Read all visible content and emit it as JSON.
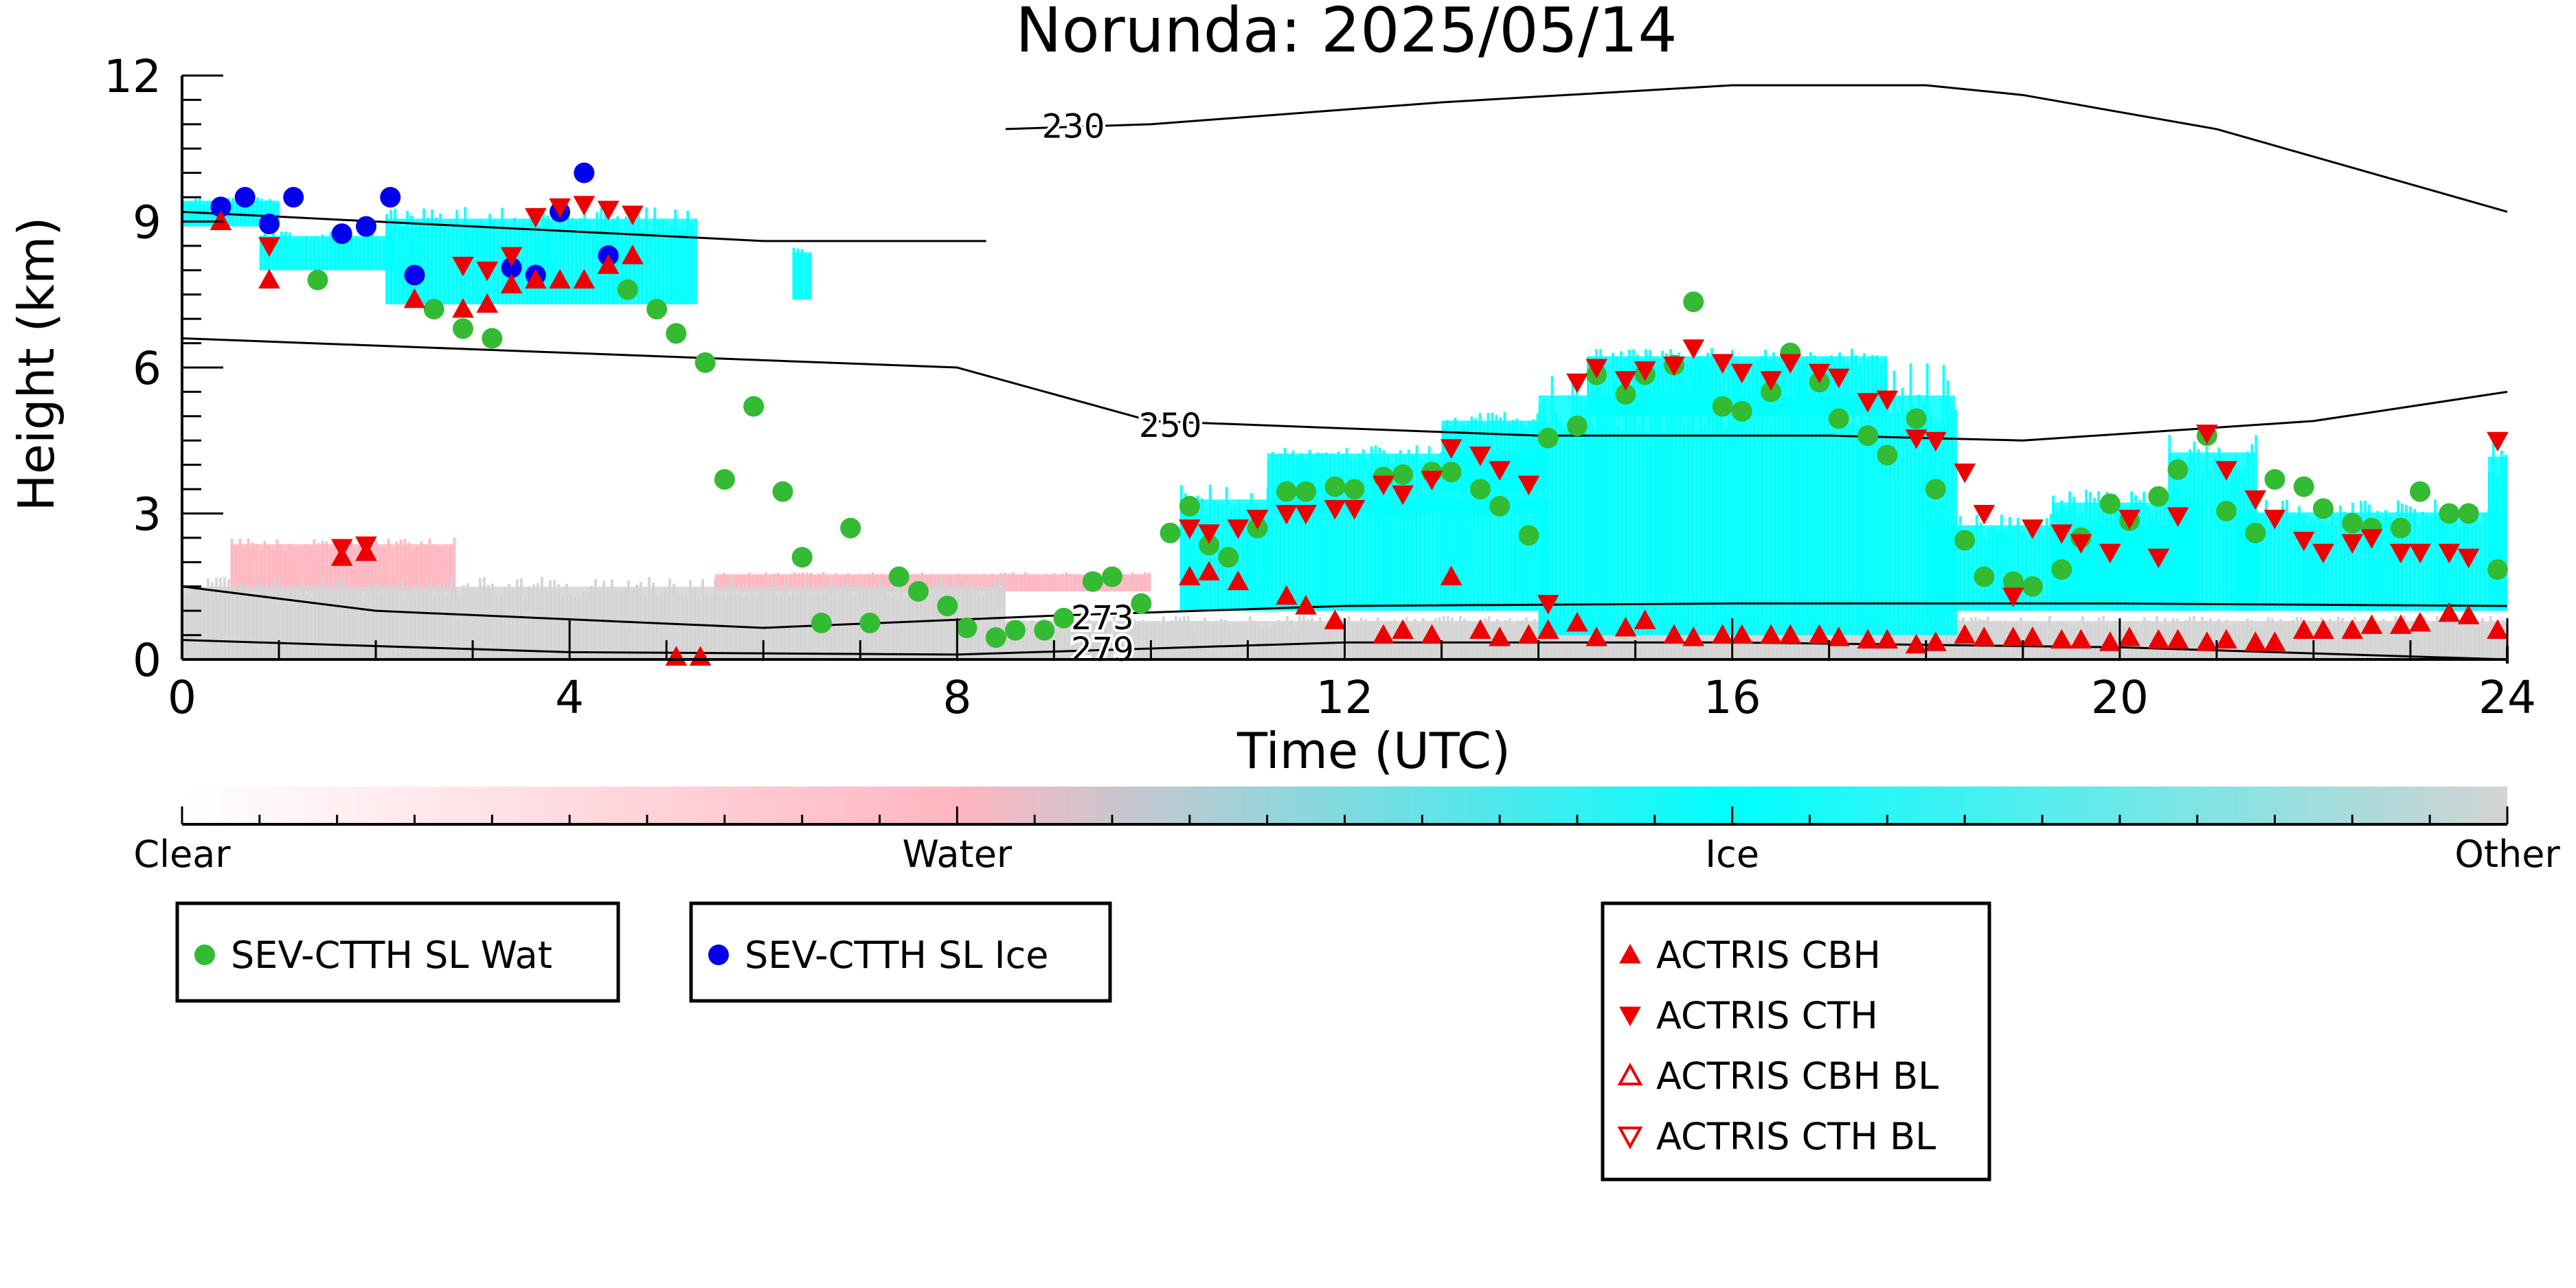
{
  "chart_data": {
    "type": "scatter",
    "title": "Norunda: 2025/05/14",
    "xlabel": "Time (UTC)",
    "ylabel": "Height (km)",
    "xlim": [
      0,
      24
    ],
    "ylim": [
      0,
      12
    ],
    "xticks": [
      0,
      4,
      8,
      12,
      16,
      20,
      24
    ],
    "yticks": [
      0,
      3,
      6,
      9,
      12
    ],
    "colorbar": {
      "labels": [
        "Clear",
        "Water",
        "Ice",
        "Other"
      ],
      "colors": [
        "#ffffff",
        "#ffb6c1",
        "#00ffff",
        "#d3d3d3"
      ]
    },
    "contours": [
      {
        "label": "230",
        "points": [
          [
            8.5,
            10.9
          ],
          [
            10,
            11
          ],
          [
            13,
            11.45
          ],
          [
            16,
            11.8
          ],
          [
            18,
            11.8
          ],
          [
            19,
            11.6
          ],
          [
            21,
            10.9
          ],
          [
            24,
            9.2
          ]
        ]
      },
      {
        "label": "250",
        "points": [
          [
            0,
            6.6
          ],
          [
            4,
            6.3
          ],
          [
            8,
            6
          ],
          [
            10,
            4.9
          ],
          [
            14,
            4.6
          ],
          [
            17,
            4.6
          ],
          [
            19,
            4.5
          ],
          [
            22,
            4.9
          ],
          [
            24,
            5.5
          ]
        ]
      },
      {
        "label": "273",
        "points": [
          [
            0,
            1.5
          ],
          [
            2,
            1
          ],
          [
            6,
            0.65
          ],
          [
            9,
            0.9
          ],
          [
            12,
            1.1
          ],
          [
            16,
            1.15
          ],
          [
            20,
            1.15
          ],
          [
            24,
            1.1
          ]
        ]
      },
      {
        "label": "279",
        "points": [
          [
            0,
            0.4
          ],
          [
            4,
            0.15
          ],
          [
            8,
            0.1
          ],
          [
            12,
            0.35
          ],
          [
            16,
            0.35
          ],
          [
            20,
            0.25
          ],
          [
            24,
            0
          ]
        ]
      },
      {
        "label": "",
        "points": [
          [
            0,
            9.2
          ],
          [
            3,
            8.9
          ],
          [
            6,
            8.6
          ],
          [
            8.3,
            8.6
          ]
        ]
      }
    ],
    "series": [
      {
        "name": "SEV-CTTH SL Wat",
        "marker": "circle",
        "color": "#33bb33",
        "x": [
          1.4,
          2.6,
          2.9,
          3.2,
          4.6,
          4.9,
          5.1,
          5.4,
          5.6,
          5.9,
          6.2,
          6.4,
          6.6,
          6.9,
          7.1,
          7.4,
          7.6,
          7.9,
          8.1,
          8.4,
          8.6,
          8.9,
          9.1,
          9.4,
          9.6,
          9.9,
          10.2,
          10.4,
          10.6,
          10.8,
          11.1,
          11.4,
          11.6,
          11.9,
          12.1,
          12.4,
          12.6,
          12.9,
          13.1,
          13.4,
          13.6,
          13.9,
          14.1,
          14.4,
          14.6,
          14.9,
          15.1,
          15.4,
          15.6,
          15.9,
          16.1,
          16.4,
          16.6,
          16.9,
          17.1,
          17.4,
          17.6,
          17.9,
          18.1,
          18.4,
          18.6,
          18.9,
          19.1,
          19.4,
          19.6,
          19.9,
          20.1,
          20.4,
          20.6,
          20.9,
          21.1,
          21.4,
          21.6,
          21.9,
          22.1,
          22.4,
          22.6,
          22.9,
          23.1,
          23.4,
          23.6,
          23.9
        ],
        "y": [
          7.8,
          7.2,
          6.8,
          6.6,
          7.6,
          7.2,
          6.7,
          6.1,
          3.7,
          5.2,
          3.45,
          2.1,
          0.75,
          2.7,
          0.75,
          1.7,
          1.4,
          1.1,
          0.65,
          0.45,
          0.6,
          0.6,
          0.85,
          1.6,
          1.7,
          1.15,
          2.6,
          3.15,
          2.35,
          2.1,
          2.7,
          3.45,
          3.45,
          3.55,
          3.5,
          3.75,
          3.8,
          3.85,
          3.85,
          3.5,
          3.15,
          2.55,
          4.55,
          4.8,
          5.85,
          5.45,
          5.85,
          6.05,
          7.35,
          5.2,
          5.1,
          5.5,
          6.3,
          5.7,
          4.95,
          4.6,
          4.2,
          4.95,
          3.5,
          2.45,
          1.7,
          1.6,
          1.5,
          1.85,
          2.5,
          3.2,
          2.85,
          3.35,
          3.9,
          4.6,
          3.05,
          2.6,
          3.7,
          3.55,
          3.1,
          2.8,
          2.7,
          2.7,
          3.45,
          3.0,
          3.0,
          1.85
        ]
      },
      {
        "name": "SEV-CTTH SL Ice",
        "marker": "circle",
        "color": "#0000ee",
        "x": [
          0.4,
          0.65,
          0.9,
          1.15,
          1.65,
          1.9,
          2.15,
          2.4,
          3.4,
          3.65,
          3.9,
          4.15,
          4.4
        ],
        "y": [
          9.3,
          9.5,
          8.95,
          9.5,
          8.75,
          8.9,
          9.5,
          7.9,
          8.05,
          7.9,
          9.2,
          10.0,
          8.3
        ]
      },
      {
        "name": "ACTRIS CBH",
        "marker": "triangle-up",
        "color": "#ee0000",
        "x": [
          0.4,
          0.9,
          1.65,
          1.9,
          2.4,
          2.9,
          3.15,
          3.4,
          3.65,
          3.9,
          4.15,
          4.4,
          4.65,
          5.1,
          5.35,
          10.4,
          10.6,
          10.9,
          11.4,
          11.6,
          11.9,
          12.4,
          12.6,
          12.9,
          13.1,
          13.4,
          13.6,
          13.9,
          14.1,
          14.4,
          14.6,
          14.9,
          15.1,
          15.4,
          15.6,
          15.9,
          16.1,
          16.4,
          16.6,
          16.9,
          17.1,
          17.4,
          17.6,
          17.9,
          18.1,
          18.4,
          18.6,
          18.9,
          19.1,
          19.4,
          19.6,
          19.9,
          20.1,
          20.4,
          20.6,
          20.9,
          21.1,
          21.4,
          21.6,
          21.9,
          22.1,
          22.4,
          22.6,
          22.9,
          23.1,
          23.4,
          23.6,
          23.9
        ],
        "y": [
          9.0,
          7.8,
          2.1,
          2.2,
          7.4,
          7.2,
          7.3,
          7.7,
          7.8,
          7.8,
          7.8,
          8.1,
          8.3,
          0.05,
          0.05,
          1.7,
          1.8,
          1.6,
          1.3,
          1.1,
          0.8,
          0.5,
          0.6,
          0.5,
          1.7,
          0.6,
          0.45,
          0.5,
          0.6,
          0.75,
          0.45,
          0.65,
          0.8,
          0.5,
          0.45,
          0.5,
          0.5,
          0.5,
          0.5,
          0.5,
          0.45,
          0.4,
          0.4,
          0.3,
          0.35,
          0.5,
          0.45,
          0.45,
          0.45,
          0.4,
          0.4,
          0.35,
          0.45,
          0.4,
          0.4,
          0.35,
          0.4,
          0.35,
          0.35,
          0.6,
          0.6,
          0.6,
          0.7,
          0.7,
          0.75,
          0.95,
          0.9,
          0.6
        ]
      },
      {
        "name": "ACTRIS CTH",
        "marker": "triangle-down",
        "color": "#ee0000",
        "x": [
          0.9,
          1.65,
          1.9,
          2.9,
          3.15,
          3.4,
          3.65,
          3.9,
          4.15,
          4.4,
          4.65,
          10.4,
          10.6,
          10.9,
          11.1,
          11.4,
          11.6,
          11.9,
          12.1,
          12.4,
          12.6,
          12.9,
          13.1,
          13.4,
          13.6,
          13.9,
          14.1,
          14.4,
          14.6,
          14.9,
          15.1,
          15.4,
          15.6,
          15.9,
          16.1,
          16.4,
          16.6,
          16.9,
          17.1,
          17.4,
          17.6,
          17.9,
          18.1,
          18.4,
          18.6,
          18.9,
          19.1,
          19.4,
          19.6,
          19.9,
          20.1,
          20.4,
          20.6,
          20.9,
          21.1,
          21.4,
          21.6,
          21.9,
          22.1,
          22.4,
          22.6,
          22.9,
          23.1,
          23.4,
          23.6,
          23.9
        ],
        "y": [
          8.5,
          2.3,
          2.35,
          8.1,
          8.0,
          8.3,
          9.1,
          9.3,
          9.35,
          9.25,
          9.15,
          2.7,
          2.6,
          2.7,
          2.9,
          3.0,
          3.0,
          3.1,
          3.1,
          3.6,
          3.4,
          3.7,
          4.35,
          4.2,
          3.9,
          3.6,
          1.15,
          5.7,
          6.0,
          5.75,
          5.95,
          6.05,
          6.4,
          6.1,
          5.9,
          5.75,
          6.1,
          5.9,
          5.8,
          5.3,
          5.35,
          4.55,
          4.5,
          3.85,
          3.0,
          1.3,
          2.7,
          2.6,
          2.4,
          2.2,
          2.9,
          2.1,
          2.95,
          4.65,
          3.9,
          3.3,
          2.9,
          2.45,
          2.2,
          2.4,
          2.5,
          2.2,
          2.2,
          2.2,
          2.1,
          4.5
        ]
      },
      {
        "name": "ACTRIS CBH BL",
        "marker": "triangle-up-open",
        "color": "#ee0000",
        "x": [],
        "y": []
      },
      {
        "name": "ACTRIS CTH BL",
        "marker": "triangle-down-open",
        "color": "#ee0000",
        "x": [],
        "y": []
      }
    ],
    "curtain_blocks": [
      {
        "cat": "water",
        "x0": 0.5,
        "x1": 2.8,
        "y0": 1.4,
        "y1": 2.5
      },
      {
        "cat": "water",
        "x0": 5.5,
        "x1": 10.0,
        "y0": 1.4,
        "y1": 1.8
      },
      {
        "cat": "other",
        "x0": 0.0,
        "x1": 8.5,
        "y0": 0.0,
        "y1": 1.7
      },
      {
        "cat": "other",
        "x0": 8.5,
        "x1": 24.0,
        "y0": 0.0,
        "y1": 0.9
      },
      {
        "cat": "ice",
        "x0": 0.0,
        "x1": 1.0,
        "y0": 8.9,
        "y1": 9.5
      },
      {
        "cat": "ice",
        "x0": 0.8,
        "x1": 2.2,
        "y0": 8.0,
        "y1": 8.8
      },
      {
        "cat": "ice",
        "x0": 2.1,
        "x1": 5.3,
        "y0": 7.3,
        "y1": 9.3
      },
      {
        "cat": "ice",
        "x0": 6.3,
        "x1": 6.5,
        "y0": 7.4,
        "y1": 8.5
      },
      {
        "cat": "ice",
        "x0": 10.3,
        "x1": 14.1,
        "y0": 1.0,
        "y1": 3.6
      },
      {
        "cat": "ice",
        "x0": 11.2,
        "x1": 14.0,
        "y0": 3.0,
        "y1": 4.4
      },
      {
        "cat": "ice",
        "x0": 13.0,
        "x1": 14.1,
        "y0": 3.5,
        "y1": 5.1
      },
      {
        "cat": "ice",
        "x0": 14.0,
        "x1": 18.3,
        "y0": 0.5,
        "y1": 6.1
      },
      {
        "cat": "ice",
        "x0": 14.5,
        "x1": 17.6,
        "y0": 5.0,
        "y1": 6.4
      },
      {
        "cat": "ice",
        "x0": 18.0,
        "x1": 20.8,
        "y0": 1.0,
        "y1": 3.0
      },
      {
        "cat": "ice",
        "x0": 19.3,
        "x1": 20.8,
        "y0": 1.2,
        "y1": 3.5
      },
      {
        "cat": "ice",
        "x0": 20.5,
        "x1": 21.4,
        "y0": 1.0,
        "y1": 4.7
      },
      {
        "cat": "ice",
        "x0": 21.2,
        "x1": 24.0,
        "y0": 1.0,
        "y1": 3.3
      },
      {
        "cat": "ice",
        "x0": 23.8,
        "x1": 24.0,
        "y0": 1.0,
        "y1": 4.6
      }
    ]
  }
}
